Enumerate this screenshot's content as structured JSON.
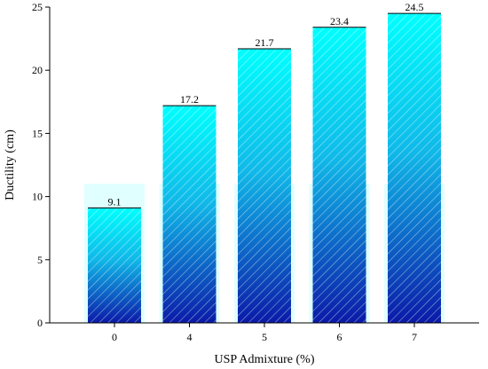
{
  "chart_data": {
    "type": "bar",
    "categories": [
      "0",
      "4",
      "5",
      "6",
      "7"
    ],
    "values": [
      9.1,
      17.2,
      21.7,
      23.4,
      24.5
    ],
    "data_labels": [
      "9.1",
      "17.2",
      "21.7",
      "23.4",
      "24.5"
    ],
    "xlabel": "USP Admixture (%)",
    "ylabel": "Ductility (cm)",
    "ylim": [
      0,
      25
    ],
    "yticks": [
      0,
      5,
      10,
      15,
      20,
      25
    ],
    "grid": false,
    "fill_gradient": [
      "#00ffff",
      "#0a1aa8"
    ],
    "pattern": "diagonal-hatch"
  }
}
